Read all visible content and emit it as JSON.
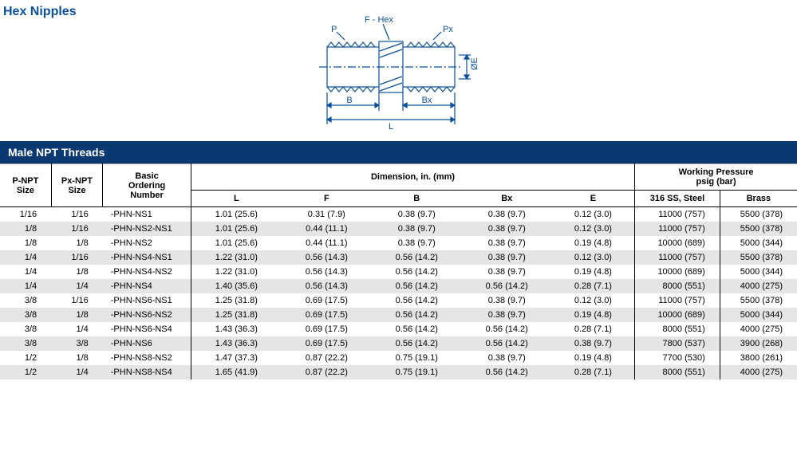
{
  "title": "Hex Nipples",
  "section_header": "Male NPT Threads",
  "diagram": {
    "labels": {
      "P": "P",
      "F": "F - Hex",
      "Px": "Px",
      "B": "B",
      "Bx": "Bx",
      "L": "L",
      "E": "ØE"
    },
    "colors": {
      "stroke": "#0a4f9a",
      "hatch": "#0a4f9a",
      "bg": "#ffffff"
    }
  },
  "headers": {
    "pnpt": "P-NPT\nSize",
    "pxnpt": "Px-NPT\nSize",
    "basic": "Basic\nOrdering\nNumber",
    "dim": "Dimension, in. (mm)",
    "L": "L",
    "F": "F",
    "B": "B",
    "Bx": "Bx",
    "E": "E",
    "wp": "Working Pressure\npsig (bar)",
    "ss": "316 SS, Steel",
    "brass": "Brass"
  },
  "rows": [
    {
      "pnpt": "1/16",
      "pxnpt": "1/16",
      "num": "-PHN-NS1",
      "L": "1.01 (25.6)",
      "F": "0.31 (7.9)",
      "B": "0.38 (9.7)",
      "Bx": "0.38 (9.7)",
      "E": "0.12 (3.0)",
      "ss": "11000 (757)",
      "br": "5500 (378)",
      "stripe": false
    },
    {
      "pnpt": "1/8",
      "pxnpt": "1/16",
      "num": "-PHN-NS2-NS1",
      "L": "1.01 (25.6)",
      "F": "0.44 (11.1)",
      "B": "0.38 (9.7)",
      "Bx": "0.38 (9.7)",
      "E": "0.12 (3.0)",
      "ss": "11000 (757)",
      "br": "5500 (378)",
      "stripe": true
    },
    {
      "pnpt": "1/8",
      "pxnpt": "1/8",
      "num": "-PHN-NS2",
      "L": "1.01 (25.6)",
      "F": "0.44 (11.1)",
      "B": "0.38 (9.7)",
      "Bx": "0.38 (9.7)",
      "E": "0.19 (4.8)",
      "ss": "10000 (689)",
      "br": "5000 (344)",
      "stripe": false
    },
    {
      "pnpt": "1/4",
      "pxnpt": "1/16",
      "num": "-PHN-NS4-NS1",
      "L": "1.22 (31.0)",
      "F": "0.56 (14.3)",
      "B": "0.56 (14.2)",
      "Bx": "0.38 (9.7)",
      "E": "0.12 (3.0)",
      "ss": "11000 (757)",
      "br": "5500 (378)",
      "stripe": true
    },
    {
      "pnpt": "1/4",
      "pxnpt": "1/8",
      "num": "-PHN-NS4-NS2",
      "L": "1.22 (31.0)",
      "F": "0.56 (14.3)",
      "B": "0.56 (14.2)",
      "Bx": "0.38 (9.7)",
      "E": "0.19 (4.8)",
      "ss": "10000 (689)",
      "br": "5000 (344)",
      "stripe": false
    },
    {
      "pnpt": "1/4",
      "pxnpt": "1/4",
      "num": "-PHN-NS4",
      "L": "1.40 (35.6)",
      "F": "0.56 (14.3)",
      "B": "0.56 (14.2)",
      "Bx": "0.56 (14.2)",
      "E": "0.28 (7.1)",
      "ss": "8000 (551)",
      "br": "4000 (275)",
      "stripe": true
    },
    {
      "pnpt": "3/8",
      "pxnpt": "1/16",
      "num": "-PHN-NS6-NS1",
      "L": "1.25 (31.8)",
      "F": "0.69 (17.5)",
      "B": "0.56 (14.2)",
      "Bx": "0.38 (9.7)",
      "E": "0.12 (3.0)",
      "ss": "11000 (757)",
      "br": "5500 (378)",
      "stripe": false
    },
    {
      "pnpt": "3/8",
      "pxnpt": "1/8",
      "num": "-PHN-NS6-NS2",
      "L": "1.25 (31.8)",
      "F": "0.69 (17.5)",
      "B": "0.56 (14.2)",
      "Bx": "0.38 (9.7)",
      "E": "0.19 (4.8)",
      "ss": "10000 (689)",
      "br": "5000 (344)",
      "stripe": true
    },
    {
      "pnpt": "3/8",
      "pxnpt": "1/4",
      "num": "-PHN-NS6-NS4",
      "L": "1.43 (36.3)",
      "F": "0.69 (17.5)",
      "B": "0.56 (14.2)",
      "Bx": "0.56 (14.2)",
      "E": "0.28 (7.1)",
      "ss": "8000 (551)",
      "br": "4000 (275)",
      "stripe": false
    },
    {
      "pnpt": "3/8",
      "pxnpt": "3/8",
      "num": "-PHN-NS6",
      "L": "1.43 (36.3)",
      "F": "0.69 (17.5)",
      "B": "0.56 (14.2)",
      "Bx": "0.56 (14.2)",
      "E": "0.38 (9.7)",
      "ss": "7800 (537)",
      "br": "3900 (268)",
      "stripe": true
    },
    {
      "pnpt": "1/2",
      "pxnpt": "1/8",
      "num": "-PHN-NS8-NS2",
      "L": "1.47 (37.3)",
      "F": "0.87 (22.2)",
      "B": "0.75 (19.1)",
      "Bx": "0.38 (9.7)",
      "E": "0.19 (4.8)",
      "ss": "7700 (530)",
      "br": "3800 (261)",
      "stripe": false
    },
    {
      "pnpt": "1/2",
      "pxnpt": "1/4",
      "num": "-PHN-NS8-NS4",
      "L": "1.65 (41.9)",
      "F": "0.87 (22.2)",
      "B": "0.75 (19.1)",
      "Bx": "0.56 (14.2)",
      "E": "0.28 (7.1)",
      "ss": "8000 (551)",
      "br": "4000 (275)",
      "stripe": true
    }
  ]
}
